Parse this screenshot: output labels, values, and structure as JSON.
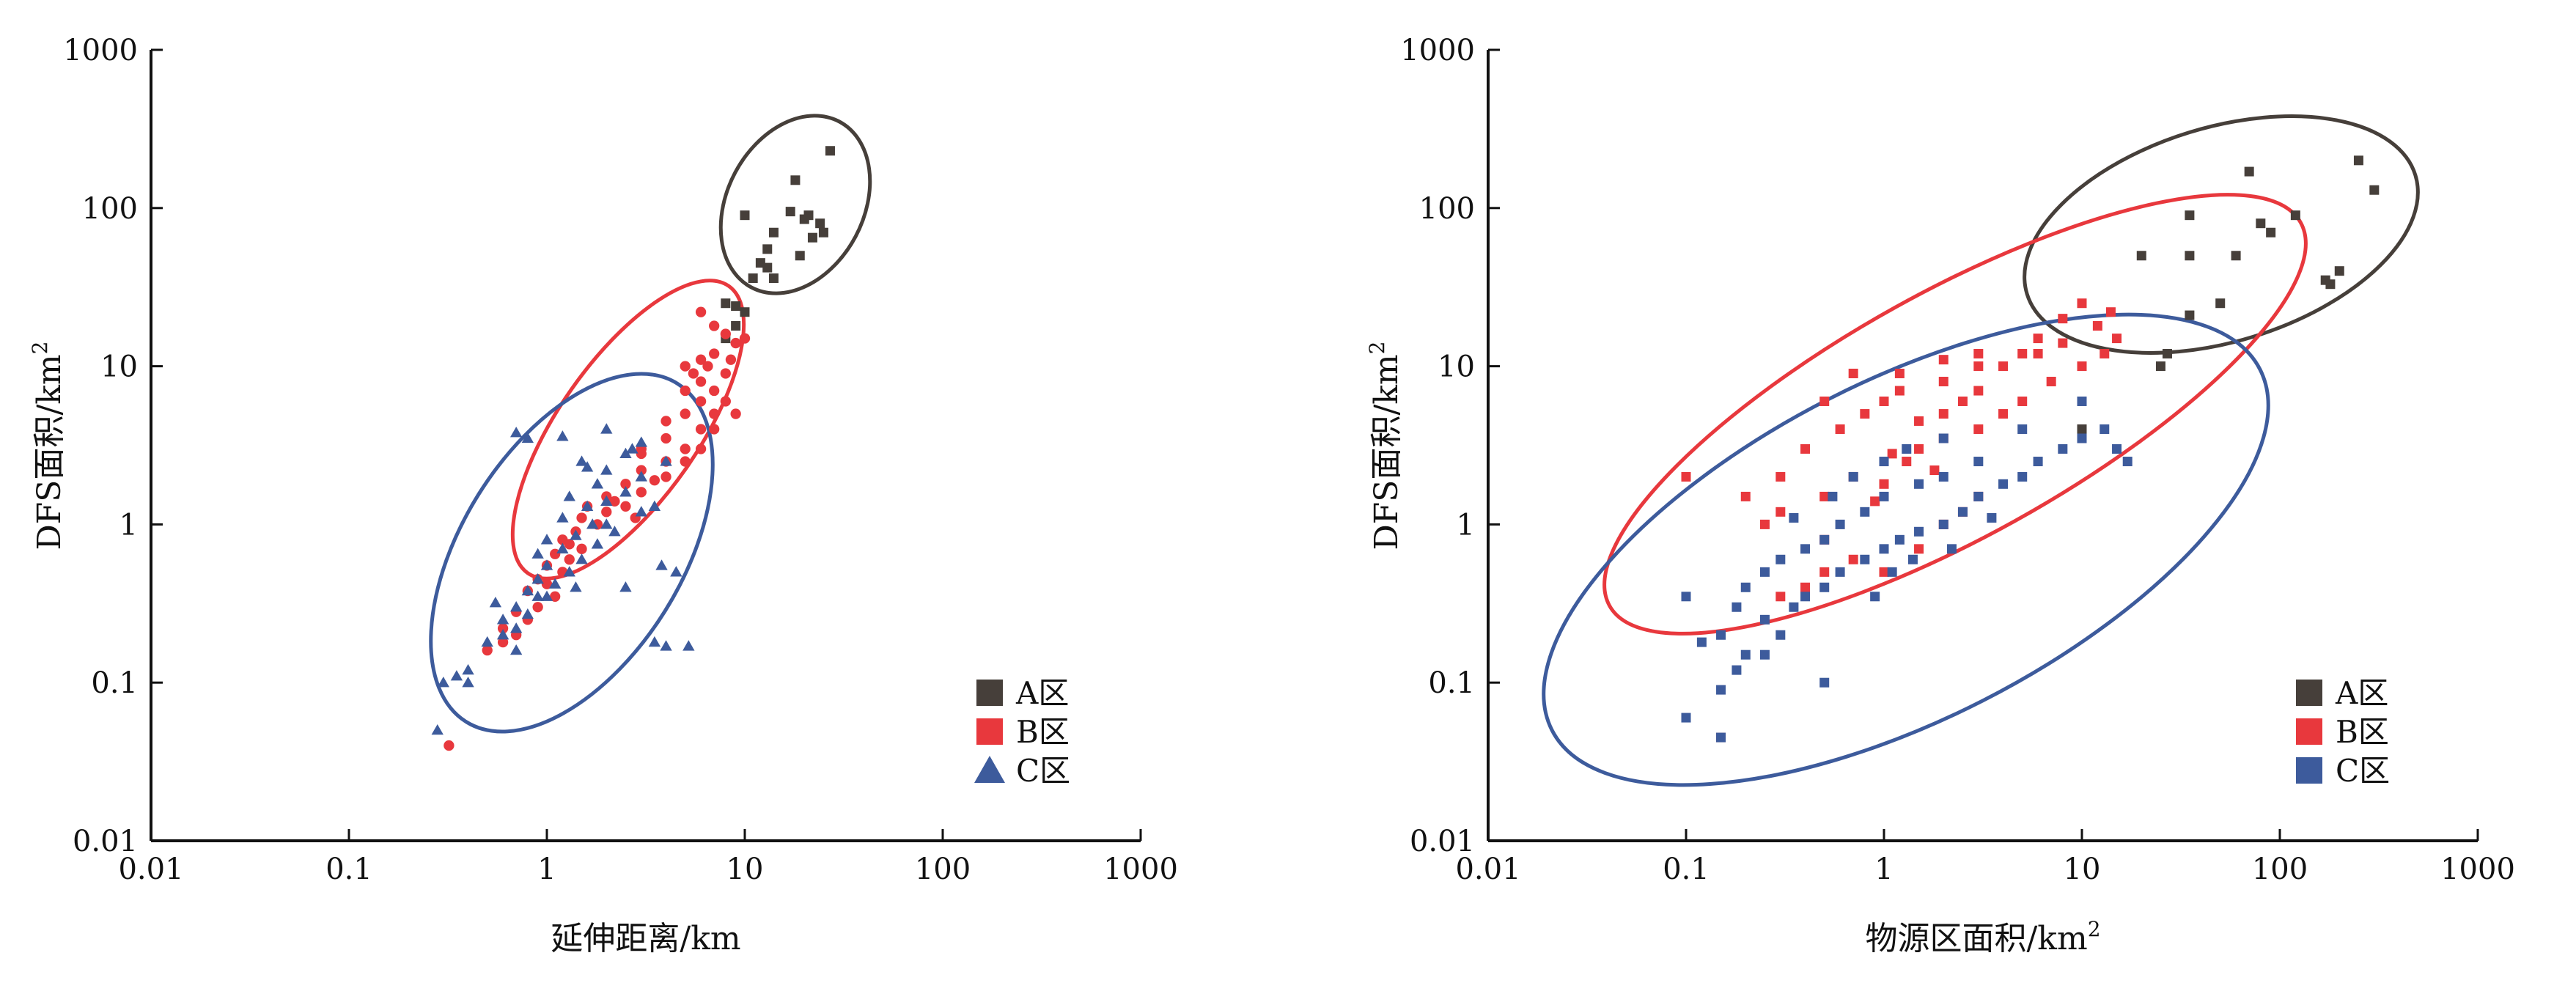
{
  "colors": {
    "A": "#463f3a",
    "B": "#e8383d",
    "C": "#3d5b9c",
    "axis": "#111111"
  },
  "chart_data": [
    {
      "type": "scatter",
      "xlabel": "延伸距离/km",
      "ylabel": "DFS面积/km",
      "ylabel_sup": "2",
      "xlabel_sup": "",
      "x_scale": "log",
      "y_scale": "log",
      "xlim": [
        0.01,
        1000
      ],
      "ylim": [
        0.01,
        1000
      ],
      "x_ticks": [
        "0.01",
        "0.1",
        "1",
        "10",
        "100",
        "1000"
      ],
      "y_ticks": [
        "0.01",
        "0.1",
        "1",
        "10",
        "100",
        "1000"
      ],
      "legend_position": "bottom-right",
      "series": [
        {
          "name": "A区",
          "key": "A",
          "marker": "square",
          "points": [
            [
              27,
              230
            ],
            [
              18,
              150
            ],
            [
              10,
              90
            ],
            [
              21,
              90
            ],
            [
              17,
              95
            ],
            [
              24,
              80
            ],
            [
              20,
              85
            ],
            [
              25,
              70
            ],
            [
              14,
              70
            ],
            [
              22,
              65
            ],
            [
              13,
              55
            ],
            [
              19,
              50
            ],
            [
              12,
              45
            ],
            [
              13,
              42
            ],
            [
              11,
              36
            ],
            [
              14,
              36
            ],
            [
              8,
              25
            ],
            [
              9,
              24
            ],
            [
              10,
              22
            ],
            [
              9,
              18
            ],
            [
              8,
              15
            ]
          ]
        },
        {
          "name": "B区",
          "key": "B",
          "marker": "circle",
          "points": [
            [
              6,
              22
            ],
            [
              7,
              18
            ],
            [
              8,
              16
            ],
            [
              9,
              14
            ],
            [
              10,
              15
            ],
            [
              7,
              12
            ],
            [
              6,
              11
            ],
            [
              5,
              10
            ],
            [
              8,
              9
            ],
            [
              6,
              8
            ],
            [
              5,
              7
            ],
            [
              6,
              6
            ],
            [
              7,
              5
            ],
            [
              5,
              5
            ],
            [
              4,
              4.5
            ],
            [
              6,
              4
            ],
            [
              4,
              3.5
            ],
            [
              5,
              3
            ],
            [
              3,
              3
            ],
            [
              4,
              2.5
            ],
            [
              3,
              2.2
            ],
            [
              4,
              2
            ],
            [
              2.5,
              1.8
            ],
            [
              3,
              1.6
            ],
            [
              2,
              1.5
            ],
            [
              2.5,
              1.3
            ],
            [
              2,
              1.2
            ],
            [
              1.5,
              1.1
            ],
            [
              1.8,
              1
            ],
            [
              1.4,
              0.9
            ],
            [
              1.2,
              0.8
            ],
            [
              1.5,
              0.7
            ],
            [
              1.1,
              0.65
            ],
            [
              1.3,
              0.6
            ],
            [
              1,
              0.55
            ],
            [
              1.2,
              0.5
            ],
            [
              0.9,
              0.45
            ],
            [
              1,
              0.42
            ],
            [
              0.8,
              0.38
            ],
            [
              1.1,
              0.35
            ],
            [
              0.9,
              0.3
            ],
            [
              0.7,
              0.28
            ],
            [
              0.8,
              0.25
            ],
            [
              0.6,
              0.22
            ],
            [
              0.7,
              0.2
            ],
            [
              0.6,
              0.18
            ],
            [
              0.5,
              0.16
            ],
            [
              0.32,
              0.04
            ],
            [
              7,
              7
            ],
            [
              8,
              6
            ],
            [
              9,
              5
            ],
            [
              7,
              4
            ],
            [
              6,
              3
            ],
            [
              5,
              2.5
            ],
            [
              3,
              2.8
            ],
            [
              3.5,
              1.9
            ],
            [
              2.2,
              1.4
            ],
            [
              1.6,
              1.3
            ],
            [
              2.8,
              1.1
            ],
            [
              1.3,
              0.75
            ],
            [
              5.5,
              9
            ],
            [
              6.5,
              10
            ],
            [
              8.5,
              11
            ]
          ]
        },
        {
          "name": "C区",
          "key": "C",
          "marker": "triangle",
          "points": [
            [
              0.7,
              3.8
            ],
            [
              0.8,
              3.5
            ],
            [
              1.2,
              3.6
            ],
            [
              2,
              4
            ],
            [
              3,
              3.3
            ],
            [
              2.5,
              2.8
            ],
            [
              1.5,
              2.5
            ],
            [
              2,
              2.2
            ],
            [
              3,
              2
            ],
            [
              1.8,
              1.8
            ],
            [
              2.5,
              1.6
            ],
            [
              1.3,
              1.5
            ],
            [
              2,
              1.4
            ],
            [
              1.6,
              1.3
            ],
            [
              3,
              1.2
            ],
            [
              1.2,
              1.1
            ],
            [
              1.7,
              1
            ],
            [
              2.2,
              0.9
            ],
            [
              1.4,
              0.85
            ],
            [
              1,
              0.8
            ],
            [
              1.8,
              0.75
            ],
            [
              1.2,
              0.7
            ],
            [
              0.9,
              0.65
            ],
            [
              1.5,
              0.6
            ],
            [
              1,
              0.55
            ],
            [
              1.3,
              0.5
            ],
            [
              0.9,
              0.45
            ],
            [
              1.1,
              0.42
            ],
            [
              1.4,
              0.4
            ],
            [
              0.8,
              0.38
            ],
            [
              1,
              0.35
            ],
            [
              0.7,
              0.3
            ],
            [
              0.8,
              0.27
            ],
            [
              0.6,
              0.25
            ],
            [
              0.7,
              0.22
            ],
            [
              0.6,
              0.2
            ],
            [
              0.5,
              0.18
            ],
            [
              0.7,
              0.16
            ],
            [
              0.4,
              0.12
            ],
            [
              0.35,
              0.11
            ],
            [
              0.3,
              0.1
            ],
            [
              0.4,
              0.1
            ],
            [
              0.28,
              0.05
            ],
            [
              3.5,
              0.18
            ],
            [
              4,
              0.17
            ],
            [
              5.2,
              0.17
            ],
            [
              4.5,
              0.5
            ],
            [
              3.8,
              0.55
            ],
            [
              2.5,
              0.4
            ],
            [
              4,
              2.5
            ],
            [
              3.5,
              1.3
            ],
            [
              2,
              1
            ],
            [
              2.7,
              3
            ],
            [
              1.6,
              2.3
            ],
            [
              0.9,
              0.35
            ],
            [
              0.55,
              0.32
            ]
          ]
        }
      ]
    },
    {
      "type": "scatter",
      "xlabel": "物源区面积/km",
      "xlabel_sup": "2",
      "ylabel": "DFS面积/km",
      "ylabel_sup": "2",
      "x_scale": "log",
      "y_scale": "log",
      "xlim": [
        0.01,
        1000
      ],
      "ylim": [
        0.01,
        1000
      ],
      "x_ticks": [
        "0.01",
        "0.1",
        "1",
        "10",
        "100",
        "1000"
      ],
      "y_ticks": [
        "0.01",
        "0.1",
        "1",
        "10",
        "100",
        "1000"
      ],
      "legend_position": "bottom-right",
      "series": [
        {
          "name": "A区",
          "key": "A",
          "marker": "square",
          "points": [
            [
              250,
              200
            ],
            [
              300,
              130
            ],
            [
              70,
              170
            ],
            [
              35,
              90
            ],
            [
              80,
              80
            ],
            [
              120,
              90
            ],
            [
              90,
              70
            ],
            [
              20,
              50
            ],
            [
              60,
              50
            ],
            [
              35,
              50
            ],
            [
              200,
              40
            ],
            [
              170,
              35
            ],
            [
              180,
              33
            ],
            [
              50,
              25
            ],
            [
              35,
              21
            ],
            [
              27,
              12
            ],
            [
              25,
              10
            ],
            [
              10,
              4
            ]
          ]
        },
        {
          "name": "B区",
          "key": "B",
          "marker": "square",
          "points": [
            [
              0.1,
              2
            ],
            [
              0.2,
              1.5
            ],
            [
              0.3,
              1.2
            ],
            [
              0.5,
              1.5
            ],
            [
              0.7,
              2
            ],
            [
              1,
              1.8
            ],
            [
              1.3,
              2.5
            ],
            [
              1.5,
              3
            ],
            [
              2,
              3.5
            ],
            [
              3,
              4
            ],
            [
              4,
              5
            ],
            [
              5,
              6
            ],
            [
              7,
              8
            ],
            [
              10,
              10
            ],
            [
              13,
              12
            ],
            [
              15,
              15
            ],
            [
              12,
              18
            ],
            [
              14,
              22
            ],
            [
              10,
              25
            ],
            [
              8,
              20
            ],
            [
              6,
              15
            ],
            [
              5,
              12
            ],
            [
              3,
              10
            ],
            [
              2,
              8
            ],
            [
              1.2,
              7
            ],
            [
              1,
              6
            ],
            [
              0.8,
              5
            ],
            [
              0.6,
              4
            ],
            [
              0.4,
              3
            ],
            [
              0.3,
              2
            ],
            [
              0.25,
              1
            ],
            [
              0.5,
              0.8
            ],
            [
              0.7,
              0.6
            ],
            [
              1,
              0.5
            ],
            [
              1.5,
              0.7
            ],
            [
              2,
              1
            ],
            [
              2.5,
              1.2
            ],
            [
              3,
              1.5
            ],
            [
              1.8,
              2.2
            ],
            [
              1.1,
              2.8
            ],
            [
              0.9,
              1.4
            ],
            [
              0.5,
              0.5
            ],
            [
              0.4,
              0.4
            ],
            [
              0.3,
              0.35
            ],
            [
              0.15,
              0.045
            ],
            [
              0.5,
              6
            ],
            [
              0.7,
              9
            ],
            [
              1.2,
              9
            ],
            [
              2,
              11
            ],
            [
              3,
              12
            ],
            [
              4,
              10
            ],
            [
              6,
              12
            ],
            [
              8,
              14
            ],
            [
              3,
              7
            ],
            [
              2,
              5
            ],
            [
              1.5,
              4.5
            ],
            [
              2.5,
              6
            ]
          ]
        },
        {
          "name": "C区",
          "key": "C",
          "marker": "square",
          "points": [
            [
              0.1,
              0.06
            ],
            [
              0.15,
              0.045
            ],
            [
              0.15,
              0.09
            ],
            [
              0.12,
              0.18
            ],
            [
              0.18,
              0.3
            ],
            [
              0.2,
              0.15
            ],
            [
              0.25,
              0.25
            ],
            [
              0.3,
              0.2
            ],
            [
              0.35,
              0.3
            ],
            [
              0.4,
              0.35
            ],
            [
              0.5,
              0.4
            ],
            [
              0.6,
              0.5
            ],
            [
              0.8,
              0.6
            ],
            [
              1,
              0.7
            ],
            [
              1.2,
              0.8
            ],
            [
              1.5,
              0.9
            ],
            [
              2,
              1
            ],
            [
              2.5,
              1.2
            ],
            [
              3,
              1.5
            ],
            [
              4,
              1.8
            ],
            [
              5,
              2
            ],
            [
              6,
              2.5
            ],
            [
              8,
              3
            ],
            [
              10,
              3.5
            ],
            [
              13,
              4
            ],
            [
              17,
              2.5
            ],
            [
              15,
              3
            ],
            [
              10,
              6
            ],
            [
              5,
              4
            ],
            [
              3,
              2.5
            ],
            [
              2,
              2
            ],
            [
              1.5,
              1.8
            ],
            [
              1,
              1.5
            ],
            [
              0.8,
              1.2
            ],
            [
              0.6,
              1
            ],
            [
              0.5,
              0.8
            ],
            [
              0.4,
              0.7
            ],
            [
              0.3,
              0.6
            ],
            [
              0.25,
              0.5
            ],
            [
              0.2,
              0.4
            ],
            [
              0.5,
              0.1
            ],
            [
              0.1,
              0.35
            ],
            [
              0.15,
              0.2
            ],
            [
              0.18,
              0.12
            ],
            [
              0.7,
              2
            ],
            [
              1,
              2.5
            ],
            [
              1.3,
              3
            ],
            [
              2,
              3.5
            ],
            [
              0.9,
              0.35
            ],
            [
              1.1,
              0.5
            ],
            [
              1.4,
              0.6
            ],
            [
              2.2,
              0.7
            ],
            [
              3.5,
              1.1
            ],
            [
              0.55,
              1.5
            ],
            [
              0.35,
              1.1
            ],
            [
              0.25,
              0.15
            ]
          ]
        }
      ]
    }
  ]
}
